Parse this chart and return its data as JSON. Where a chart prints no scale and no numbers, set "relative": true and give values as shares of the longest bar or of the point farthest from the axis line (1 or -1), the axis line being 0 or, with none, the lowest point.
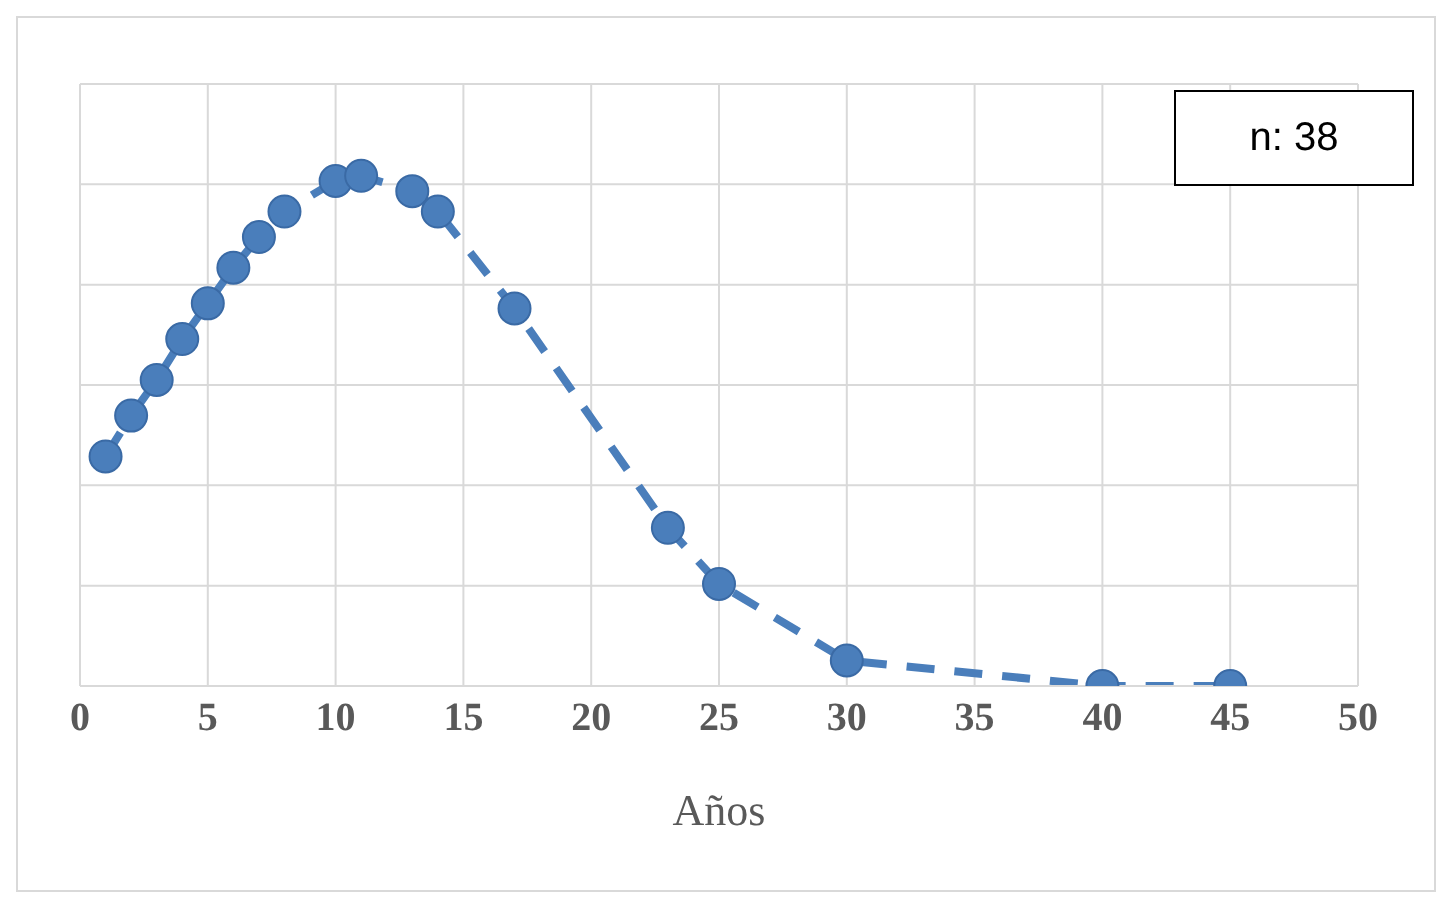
{
  "chart_data": {
    "type": "line",
    "xlabel": "Años",
    "annotations": [
      "n: 38"
    ],
    "relative": true,
    "xlim": [
      0,
      50
    ],
    "xticks": [
      0,
      5,
      10,
      15,
      20,
      25,
      30,
      35,
      40,
      45,
      50
    ],
    "grid": true,
    "marker": "circle",
    "line_style": "dashed",
    "tick_labels": "x",
    "series": [
      {
        "color": "#4a7ebb",
        "x": [
          1,
          2,
          3,
          4,
          5,
          6,
          7,
          8,
          10,
          11,
          13,
          14,
          17,
          23,
          25,
          30,
          40,
          45
        ],
        "values": [
          0.45,
          0.53,
          0.6,
          0.68,
          0.75,
          0.82,
          0.88,
          0.93,
          0.99,
          1,
          0.97,
          0.93,
          0.74,
          0.31,
          0.2,
          0.05,
          0,
          0
        ]
      }
    ]
  }
}
